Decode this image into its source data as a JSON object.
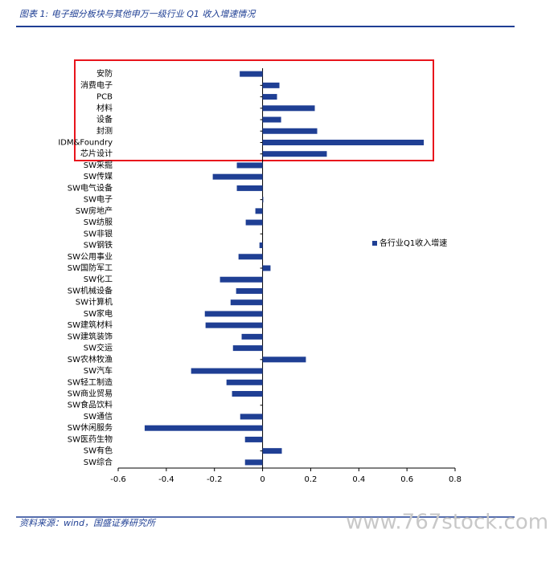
{
  "chart_data": {
    "type": "barh",
    "title": "图表 1: 电子细分板块与其他申万一级行业 Q1 收入增速情况",
    "source": "资料来源：wind，国盛证券研究所",
    "watermark": "www.767stock.com",
    "categories": [
      "安防",
      "消费电子",
      "PCB",
      "材料",
      "设备",
      "封测",
      "IDM&Foundry",
      "芯片设计",
      "SW采掘",
      "SW传媒",
      "SW电气设备",
      "SW电子",
      "SW房地产",
      "SW纺服",
      "SW非银",
      "SW钢铁",
      "SW公用事业",
      "SW国防军工",
      "SW化工",
      "SW机械设备",
      "SW计算机",
      "SW家电",
      "SW建筑材料",
      "SW建筑装饰",
      "SW交运",
      "SW农林牧渔",
      "SW汽车",
      "SW轻工制造",
      "SW商业贸易",
      "SW食品饮料",
      "SW通信",
      "SW休闲服务",
      "SW医药生物",
      "SW有色",
      "SW综合"
    ],
    "series": [
      {
        "name": "各行业Q1收入增速",
        "color": "#1f3f94",
        "values": [
          -0.095,
          0.07,
          0.06,
          0.217,
          0.077,
          0.227,
          0.67,
          0.267,
          -0.107,
          -0.207,
          -0.107,
          0.003,
          -0.03,
          -0.07,
          0,
          -0.013,
          -0.1,
          0.033,
          -0.177,
          -0.11,
          -0.133,
          -0.24,
          -0.237,
          -0.087,
          -0.123,
          0.18,
          -0.297,
          -0.15,
          -0.127,
          0,
          -0.093,
          -0.49,
          -0.073,
          0.08,
          -0.073
        ]
      }
    ],
    "xlim": [
      -0.6,
      0.8
    ],
    "xticks": [
      -0.6,
      -0.4,
      -0.2,
      0,
      0.2,
      0.4,
      0.6,
      0.8
    ],
    "legend": "right"
  }
}
